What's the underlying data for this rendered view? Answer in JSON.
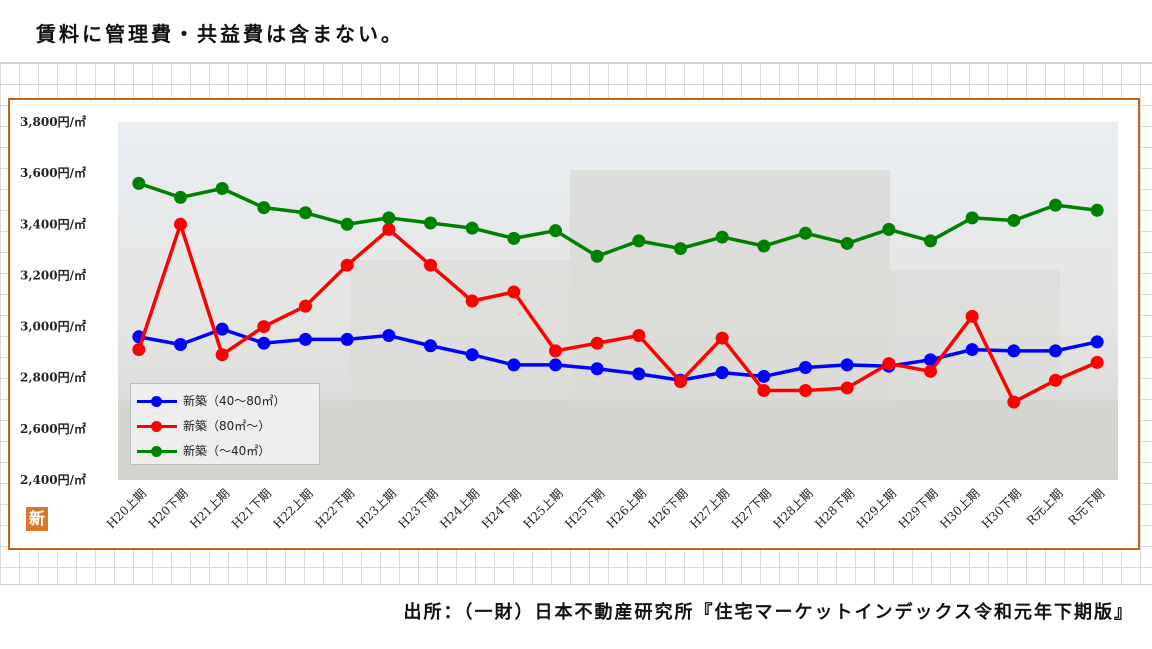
{
  "header": {
    "note": "賃料に管理費・共益費は含まない。"
  },
  "footer": {
    "source": "出所：（一財）日本不動産研究所『住宅マーケットインデックス令和元年下期版』"
  },
  "badge": {
    "label": "新"
  },
  "chart_data": {
    "type": "line",
    "title": "",
    "xlabel": "",
    "ylabel": "",
    "y_unit": "円/㎡",
    "ylim": [
      2400,
      3800
    ],
    "yticks": [
      2400,
      2600,
      2800,
      3000,
      3200,
      3400,
      3600,
      3800
    ],
    "ytick_labels": [
      "2,400円/㎡",
      "2,600円/㎡",
      "2,800円/㎡",
      "3,000円/㎡",
      "3,200円/㎡",
      "3,400円/㎡",
      "3,600円/㎡",
      "3,800円/㎡"
    ],
    "grid": false,
    "legend_position": "bottom-left",
    "categories": [
      "H20上期",
      "H20下期",
      "H21上期",
      "H21下期",
      "H22上期",
      "H22下期",
      "H23上期",
      "H23下期",
      "H24上期",
      "H24下期",
      "H25上期",
      "H25下期",
      "H26上期",
      "H26下期",
      "H27上期",
      "H27下期",
      "H28上期",
      "H28下期",
      "H29上期",
      "H29下期",
      "H30上期",
      "H30下期",
      "R元上期",
      "R元下期"
    ],
    "series": [
      {
        "name": "新築（40〜80㎡）",
        "color": "#0000ff",
        "values": [
          2960,
          2930,
          2990,
          2935,
          2950,
          2950,
          2965,
          2925,
          2890,
          2850,
          2850,
          2835,
          2815,
          2790,
          2820,
          2805,
          2840,
          2850,
          2845,
          2870,
          2910,
          2905,
          2905,
          2940
        ]
      },
      {
        "name": "新築（80㎡〜）",
        "color": "#ff0000",
        "values": [
          2910,
          3400,
          2890,
          3000,
          3080,
          3240,
          3380,
          3240,
          3100,
          3135,
          2905,
          2935,
          2965,
          2785,
          2955,
          2750,
          2750,
          2760,
          2855,
          2825,
          3040,
          2705,
          2790,
          2860
        ]
      },
      {
        "name": "新築（〜40㎡）",
        "color": "#008000",
        "values": [
          3560,
          3505,
          3540,
          3465,
          3445,
          3400,
          3425,
          3405,
          3385,
          3345,
          3375,
          3275,
          3335,
          3305,
          3350,
          3315,
          3365,
          3325,
          3380,
          3335,
          3425,
          3415,
          3475,
          3455
        ]
      }
    ]
  }
}
